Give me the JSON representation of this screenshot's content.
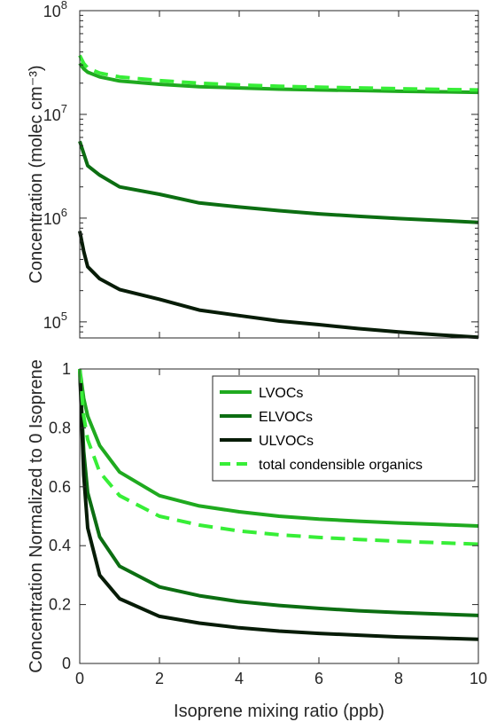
{
  "colors": {
    "lvocs": "#1faa1f",
    "elvocs": "#0c6e12",
    "ulvocs": "#071c07",
    "total": "#37ee37",
    "axes": "#262626"
  },
  "chart_data": [
    {
      "type": "line",
      "yscale": "log",
      "xlim": [
        0,
        10
      ],
      "ylim": [
        70000,
        100000000
      ],
      "ylabel": "Concentration (molec cm⁻³)",
      "xlabel": "",
      "grid": false,
      "y_ticks": [
        {
          "value": 100000,
          "base": "10",
          "exp": "5"
        },
        {
          "value": 1000000,
          "base": "10",
          "exp": "6"
        },
        {
          "value": 10000000,
          "base": "10",
          "exp": "7"
        },
        {
          "value": 100000000,
          "base": "10",
          "exp": "8"
        }
      ],
      "series": [
        {
          "name": "LVOCs",
          "color_key": "lvocs",
          "dashed": false,
          "x": [
            0,
            0.1,
            0.2,
            0.5,
            1,
            2,
            3,
            4,
            5,
            6,
            7,
            8,
            9,
            10
          ],
          "y": [
            31000000,
            27500000,
            25500000,
            23000000,
            21000000,
            19500000,
            18500000,
            18000000,
            17500000,
            17200000,
            17000000,
            16700000,
            16500000,
            16300000
          ]
        },
        {
          "name": "ELVOCs",
          "color_key": "elvocs",
          "dashed": false,
          "x": [
            0,
            0.1,
            0.2,
            0.5,
            1,
            2,
            3,
            4,
            5,
            6,
            7,
            8,
            9,
            10
          ],
          "y": [
            5500000,
            4200000,
            3200000,
            2600000,
            2000000,
            1700000,
            1400000,
            1280000,
            1180000,
            1100000,
            1040000,
            990000,
            950000,
            910000
          ]
        },
        {
          "name": "ULVOCs",
          "color_key": "ulvocs",
          "dashed": false,
          "x": [
            0,
            0.1,
            0.2,
            0.5,
            1,
            2,
            3,
            4,
            5,
            6,
            7,
            8,
            9,
            10
          ],
          "y": [
            750000,
            480000,
            340000,
            260000,
            205000,
            165000,
            130000,
            115000,
            102000,
            94000,
            86000,
            80000,
            75000,
            71000
          ]
        },
        {
          "name": "total condensible organics",
          "color_key": "total",
          "dashed": true,
          "x": [
            0,
            0.1,
            0.2,
            0.5,
            1,
            2,
            3,
            4,
            5,
            6,
            7,
            8,
            9,
            10
          ],
          "y": [
            37000000,
            31000000,
            28000000,
            25000000,
            23000000,
            21200000,
            20000000,
            19200000,
            18700000,
            18300000,
            18000000,
            17700000,
            17400000,
            17200000
          ]
        }
      ]
    },
    {
      "type": "line",
      "yscale": "linear",
      "xlim": [
        0,
        10
      ],
      "ylim": [
        0,
        1
      ],
      "xlabel": "Isoprene mixing ratio (ppb)",
      "ylabel": "Concentration Normalized to 0 Isoprene",
      "grid": false,
      "legend_position": "top-right",
      "x_ticks": [
        "0",
        "2",
        "4",
        "6",
        "8",
        "10"
      ],
      "y_ticks": [
        "0",
        "0.2",
        "0.4",
        "0.6",
        "0.8",
        "1"
      ],
      "series": [
        {
          "name": "LVOCs",
          "color_key": "lvocs",
          "dashed": false,
          "x": [
            0,
            0.1,
            0.2,
            0.5,
            1,
            2,
            3,
            4,
            5,
            6,
            7,
            8,
            9,
            10
          ],
          "y": [
            1,
            0.9,
            0.84,
            0.74,
            0.65,
            0.57,
            0.535,
            0.515,
            0.5,
            0.49,
            0.483,
            0.477,
            0.472,
            0.467
          ]
        },
        {
          "name": "ELVOCs",
          "color_key": "elvocs",
          "dashed": false,
          "x": [
            0,
            0.1,
            0.2,
            0.5,
            1,
            2,
            3,
            4,
            5,
            6,
            7,
            8,
            9,
            10
          ],
          "y": [
            1,
            0.72,
            0.58,
            0.43,
            0.33,
            0.26,
            0.23,
            0.21,
            0.197,
            0.187,
            0.179,
            0.173,
            0.168,
            0.163
          ]
        },
        {
          "name": "ULVOCs",
          "color_key": "ulvocs",
          "dashed": false,
          "x": [
            0,
            0.1,
            0.2,
            0.5,
            1,
            2,
            3,
            4,
            5,
            6,
            7,
            8,
            9,
            10
          ],
          "y": [
            1,
            0.64,
            0.46,
            0.3,
            0.22,
            0.16,
            0.137,
            0.121,
            0.11,
            0.102,
            0.096,
            0.09,
            0.086,
            0.082
          ]
        },
        {
          "name": "total condensible organics",
          "color_key": "total",
          "dashed": true,
          "x": [
            0,
            0.1,
            0.2,
            0.5,
            1,
            2,
            3,
            4,
            5,
            6,
            7,
            8,
            9,
            10
          ],
          "y": [
            1,
            0.84,
            0.76,
            0.65,
            0.57,
            0.5,
            0.47,
            0.45,
            0.437,
            0.428,
            0.421,
            0.415,
            0.41,
            0.405
          ]
        }
      ],
      "legend": [
        "LVOCs",
        "ELVOCs",
        "ULVOCs",
        "total condensible organics"
      ]
    }
  ]
}
